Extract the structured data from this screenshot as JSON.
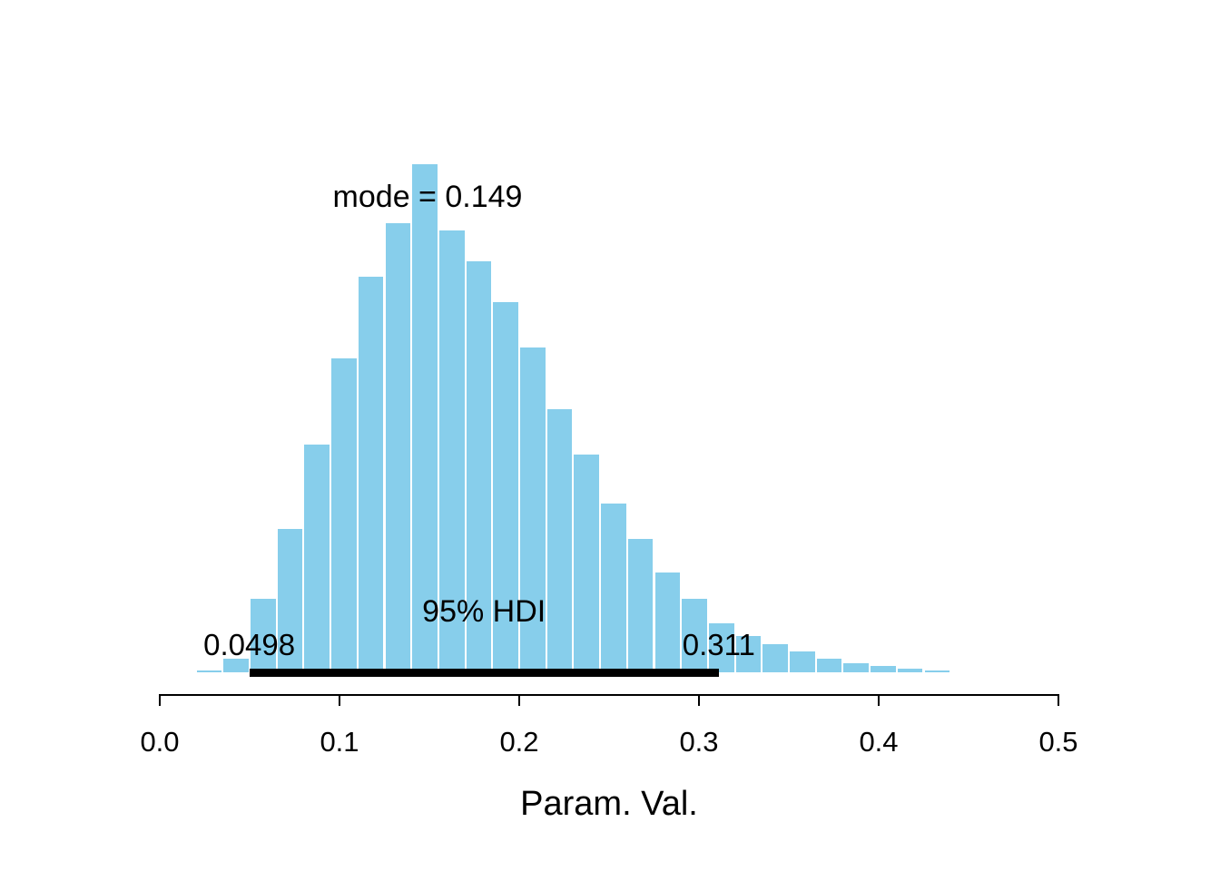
{
  "chart_data": {
    "type": "bar",
    "subtype": "histogram",
    "title": "",
    "xlabel": "Param. Val.",
    "ylabel": "",
    "grid": false,
    "legend": null,
    "x_range": [
      0.0,
      0.5
    ],
    "x_ticks": [
      {
        "value": 0.0,
        "label": "0.0"
      },
      {
        "value": 0.1,
        "label": "0.1"
      },
      {
        "value": 0.2,
        "label": "0.2"
      },
      {
        "value": 0.3,
        "label": "0.3"
      },
      {
        "value": 0.4,
        "label": "0.4"
      },
      {
        "value": 0.5,
        "label": "0.5"
      }
    ],
    "bars": {
      "bin_start": 0.02,
      "bin_width": 0.015,
      "rel_heights": [
        0.008,
        0.03,
        0.148,
        0.285,
        0.45,
        0.62,
        0.78,
        0.885,
        1.0,
        0.87,
        0.81,
        0.73,
        0.64,
        0.52,
        0.43,
        0.335,
        0.265,
        0.2,
        0.148,
        0.1,
        0.075,
        0.058,
        0.044,
        0.03,
        0.022,
        0.016,
        0.011,
        0.007
      ]
    },
    "mode": {
      "value": 0.149,
      "label": "mode = 0.149"
    },
    "hdi": {
      "low": 0.0498,
      "high": 0.311,
      "label": "95% HDI",
      "low_label": "0.0498",
      "high_label": "0.311"
    },
    "colors": {
      "bar_fill": "#87CEEB",
      "bar_border": "#FFFFFF",
      "hdi_line": "#000000",
      "text": "#000000"
    }
  }
}
